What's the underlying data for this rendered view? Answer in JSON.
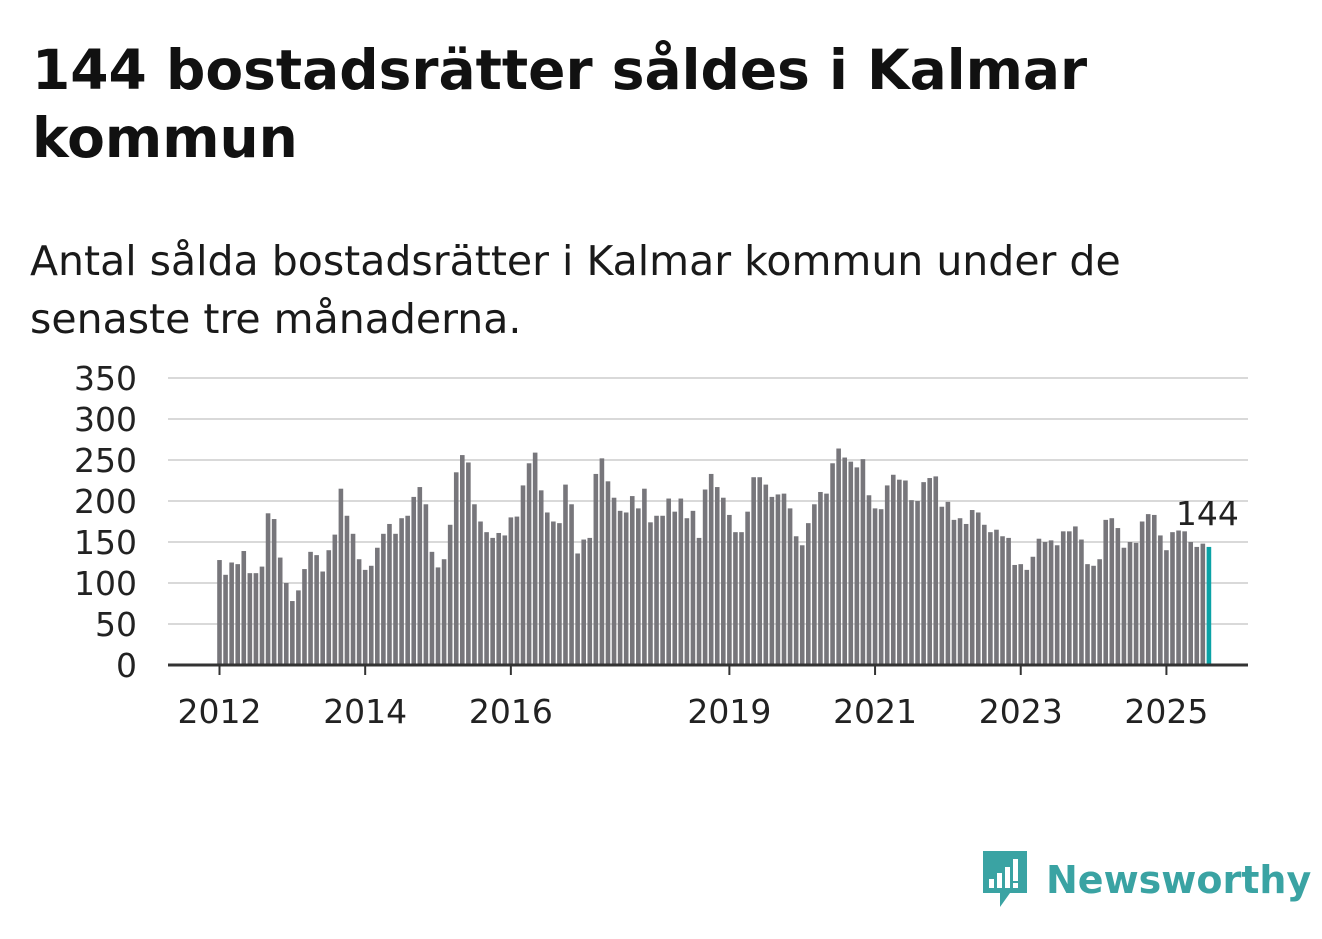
{
  "title": "144 bostadsrätter såldes i Kalmar kommun",
  "subtitle": "Antal sålda bostadsrätter i Kalmar kommun under de senaste tre månaderna.",
  "logo": {
    "text": "Newsworthy",
    "color": "#3aa3a3",
    "icon": "bar-chart-bubble-icon"
  },
  "colors": {
    "bar": "#77767b",
    "highlight": "#0aa2a6",
    "grid": "#d9d9d9",
    "axis": "#333333"
  },
  "chart_data": {
    "type": "bar",
    "title": "144 bostadsrätter såldes i Kalmar kommun",
    "subtitle": "Antal sålda bostadsrätter i Kalmar kommun under de senaste tre månaderna.",
    "x_start": "2012-01",
    "ylim": [
      0,
      350
    ],
    "y_ticks": [
      0,
      50,
      100,
      150,
      200,
      250,
      300,
      350
    ],
    "x_ticks": [
      "2012",
      "2014",
      "2016",
      "2019",
      "2021",
      "2023",
      "2025"
    ],
    "grid": true,
    "highlight_label": "144",
    "values": [
      128,
      110,
      125,
      123,
      139,
      112,
      112,
      120,
      185,
      178,
      131,
      100,
      78,
      91,
      117,
      138,
      134,
      114,
      140,
      159,
      215,
      182,
      160,
      129,
      116,
      121,
      143,
      160,
      172,
      160,
      179,
      182,
      205,
      217,
      196,
      138,
      119,
      129,
      171,
      235,
      256,
      247,
      196,
      175,
      162,
      155,
      161,
      158,
      180,
      181,
      219,
      246,
      259,
      213,
      186,
      175,
      173,
      220,
      196,
      136,
      153,
      155,
      233,
      252,
      224,
      204,
      188,
      186,
      206,
      191,
      215,
      174,
      182,
      182,
      203,
      187,
      203,
      179,
      188,
      155,
      214,
      233,
      217,
      204,
      183,
      162,
      162,
      187,
      229,
      229,
      220,
      205,
      208,
      209,
      191,
      157,
      146,
      173,
      196,
      211,
      209,
      246,
      264,
      253,
      248,
      241,
      251,
      207,
      191,
      190,
      219,
      232,
      226,
      225,
      201,
      200,
      223,
      228,
      230,
      193,
      199,
      177,
      179,
      172,
      189,
      186,
      171,
      162,
      165,
      157,
      155,
      122,
      123,
      116,
      132,
      154,
      150,
      152,
      146,
      163,
      163,
      169,
      153,
      123,
      121,
      129,
      177,
      179,
      167,
      143,
      150,
      149,
      175,
      184,
      183,
      158,
      140,
      162,
      164,
      163,
      150,
      144,
      148,
      144
    ]
  }
}
